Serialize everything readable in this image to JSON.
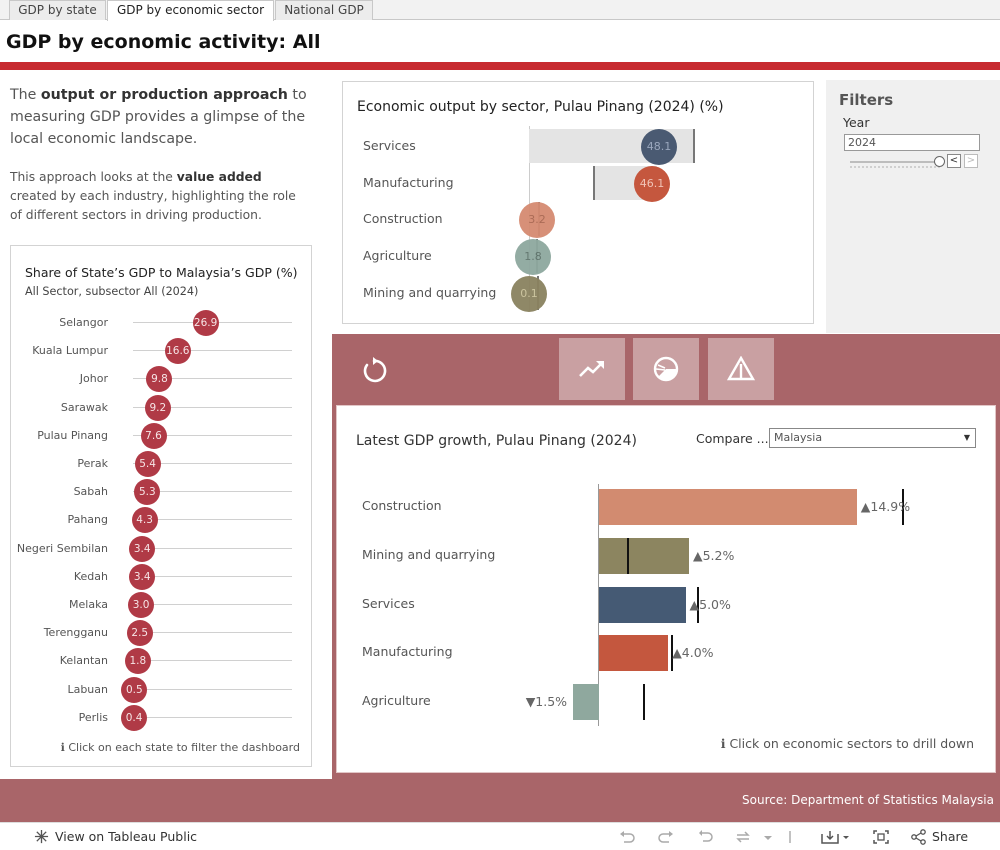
{
  "tabs": [
    "GDP by state",
    "GDP by economic sector",
    "National GDP"
  ],
  "page_title": "GDP by economic activity: All",
  "intro": {
    "p1_a": "The ",
    "p1_b": "output or production approach",
    "p1_c": " to measuring GDP provides a glimpse of the local economic landscape.",
    "p2_a": "This approach looks at the ",
    "p2_b": "value added",
    "p2_c": " created by each industry, highlighting the role of different sectors in driving production."
  },
  "share_panel": {
    "title": "Share of State’s GDP to Malaysia’s GDP (%)",
    "subtitle": "All Sector, subsector All (2024)",
    "hint": "ℹ Click on each state to filter the dashboard",
    "states": [
      {
        "name": "Selangor",
        "value": "26.9"
      },
      {
        "name": "Kuala Lumpur",
        "value": "16.6"
      },
      {
        "name": "Johor",
        "value": "9.8"
      },
      {
        "name": "Sarawak",
        "value": "9.2"
      },
      {
        "name": "Pulau Pinang",
        "value": "7.6"
      },
      {
        "name": "Perak",
        "value": "5.4"
      },
      {
        "name": "Sabah",
        "value": "5.3"
      },
      {
        "name": "Pahang",
        "value": "4.3"
      },
      {
        "name": "Negeri Sembilan",
        "value": "3.4"
      },
      {
        "name": "Kedah",
        "value": "3.4"
      },
      {
        "name": "Melaka",
        "value": "3.0"
      },
      {
        "name": "Terengganu",
        "value": "2.5"
      },
      {
        "name": "Kelantan",
        "value": "1.8"
      },
      {
        "name": "Labuan",
        "value": "0.5"
      },
      {
        "name": "Perlis",
        "value": "0.4"
      }
    ]
  },
  "sector_panel": {
    "title": "Economic output by sector, Pulau Pinang (2024) (%)",
    "rows": [
      {
        "name": "Services",
        "value": "48.1",
        "color": "#4a5a72",
        "text_color": "#9aa7bd"
      },
      {
        "name": "Manufacturing",
        "value": "46.1",
        "color": "#c5573e",
        "text_color": "#f1c4b8"
      },
      {
        "name": "Construction",
        "value": "3.2",
        "color": "#d58b71",
        "text_color": "#a7644e"
      },
      {
        "name": "Agriculture",
        "value": "1.8",
        "color": "#8ea89f",
        "text_color": "#5c7169"
      },
      {
        "name": "Mining and quarrying",
        "value": "0.1",
        "color": "#8a825f",
        "text_color": "#c9c19a"
      }
    ]
  },
  "filters": {
    "title": "Filters",
    "year_label": "Year",
    "year_value": "2024",
    "prev": "<",
    "next": ">"
  },
  "growth_panel": {
    "title": "Latest GDP growth, Pulau Pinang (2024)",
    "compare_label": "Compare ...",
    "compare_value": "Malaysia",
    "hint": "ℹ Click on economic sectors to drill down",
    "rows": [
      {
        "name": "Construction",
        "label": "▲14.9%",
        "value": 14.9,
        "benchmark": 17.6,
        "color": "#d28b70"
      },
      {
        "name": "Mining and quarrying",
        "label": "▲5.2%",
        "value": 5.2,
        "benchmark": 1.7,
        "color": "#8c8560"
      },
      {
        "name": "Services",
        "label": "▲5.0%",
        "value": 5.0,
        "benchmark": 5.7,
        "color": "#455a74"
      },
      {
        "name": "Manufacturing",
        "label": "▲4.0%",
        "value": 4.0,
        "benchmark": 4.2,
        "color": "#c4573e"
      },
      {
        "name": "Agriculture",
        "label": "▼1.5%",
        "value": -1.5,
        "benchmark": 2.6,
        "color": "#8fa89e"
      }
    ]
  },
  "footer": {
    "source": "Source: Department of Statistics Malaysia",
    "view_label": "View on Tableau Public",
    "share_label": "Share"
  }
}
